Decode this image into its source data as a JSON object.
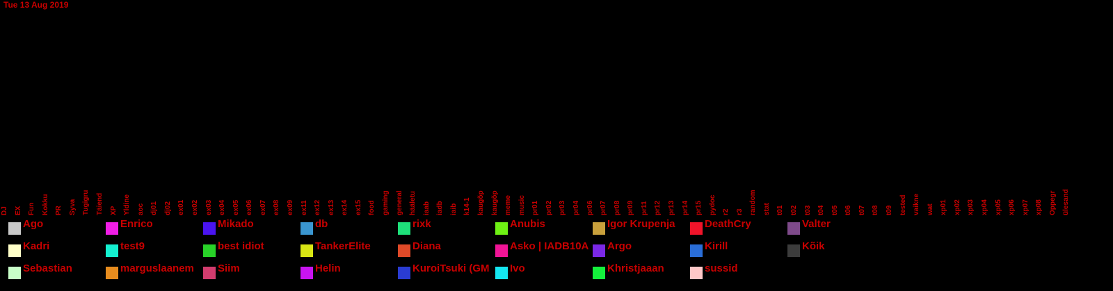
{
  "date": "Tue 13 Aug 2019",
  "channels": [
    "DJ",
    "EX",
    "Fun",
    "Kokku",
    "PR",
    "Syva",
    "Tugigru",
    "Täiend",
    "XP",
    "Yldine",
    "aoc",
    "dj01",
    "dj02",
    "ex01",
    "ex02",
    "ex03",
    "ex04",
    "ex05",
    "ex06",
    "ex07",
    "ex08",
    "ex09",
    "ex11",
    "ex12",
    "ex13",
    "ex14",
    "ex15",
    "food",
    "gaming",
    "general",
    "hääletu",
    "iaab",
    "iadb",
    "iaib",
    "k14-1",
    "kaugõp",
    "kaugõp",
    "meme",
    "music",
    "pr01",
    "pr02",
    "pr03",
    "pr04",
    "pr06",
    "pr07",
    "pr08",
    "pr09",
    "pr11",
    "pr12",
    "pr13",
    "pr14",
    "pr15",
    "pydoc",
    "r2",
    "r3",
    "random",
    "stat",
    "t01",
    "t02",
    "t03",
    "t04",
    "t05",
    "t06",
    "t07",
    "t08",
    "t09",
    "tested",
    "vaikne",
    "wat",
    "xp01",
    "xp02",
    "xp03",
    "xp04",
    "xp05",
    "xp06",
    "xp07",
    "xp08",
    "Oppegr",
    "ülesand"
  ],
  "legend": [
    {
      "name": "Ago",
      "color": "#c8c8c8"
    },
    {
      "name": "Enrico",
      "color": "#f01ee6"
    },
    {
      "name": "Mikado",
      "color": "#4a14f0"
    },
    {
      "name": "db",
      "color": "#3a96d0"
    },
    {
      "name": "rixk",
      "color": "#1ee07a"
    },
    {
      "name": "Anubis",
      "color": "#6ef014"
    },
    {
      "name": "Igor Krupenja",
      "color": "#c8a03c"
    },
    {
      "name": "DeathCry",
      "color": "#f0142a"
    },
    {
      "name": "Valter",
      "color": "#7e4a8a"
    },
    {
      "name": "Kadri",
      "color": "#ffffc8"
    },
    {
      "name": "test9",
      "color": "#14f0d0"
    },
    {
      "name": "best idiot",
      "color": "#28d228"
    },
    {
      "name": "TankerElite",
      "color": "#d8e614"
    },
    {
      "name": "Diana",
      "color": "#e04a28"
    },
    {
      "name": "Asko | IADB10A",
      "color": "#f01496"
    },
    {
      "name": "Argo",
      "color": "#7a28e6"
    },
    {
      "name": "Kirill",
      "color": "#2a6ed8"
    },
    {
      "name": "Kõik",
      "color": "#3c3c3c"
    },
    {
      "name": "Sebastian",
      "color": "#c8ffc8"
    },
    {
      "name": "marguslaanem",
      "color": "#e68c1e"
    },
    {
      "name": "Siim",
      "color": "#d23c6e"
    },
    {
      "name": "Helin",
      "color": "#c814f0"
    },
    {
      "name": "KuroiTsuki (GM",
      "color": "#2a3cd2"
    },
    {
      "name": "Ivo",
      "color": "#14e6f0"
    },
    {
      "name": "Khristjaaan",
      "color": "#14f03c"
    },
    {
      "name": "sussid",
      "color": "#ffc8c8"
    }
  ]
}
